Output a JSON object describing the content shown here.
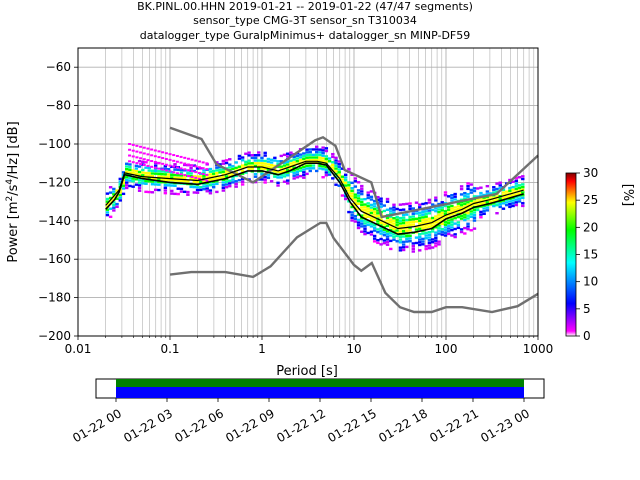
{
  "title_lines": [
    "BK.PINL.00.HHN   2019-01-21 -- 2019-01-22  (47/47 segments)",
    "sensor_type CMG-3T sensor_sn T310034",
    "datalogger_type GuralpMinimus+ datalogger_sn MINP-DF59"
  ],
  "chart_data": {
    "type": "heatmap",
    "xlabel": "Period [s]",
    "ylabel_parts": {
      "prefix": "Power [m",
      "sup1": "2",
      "mid": "/s",
      "sup2": "4",
      "suffix": "/Hz] [dB]"
    },
    "x_scale": "log",
    "xlim": [
      0.01,
      1000
    ],
    "ylim": [
      -200,
      -50
    ],
    "x_ticks": [
      {
        "value": 0.01,
        "label": "0.01"
      },
      {
        "value": 0.1,
        "label": "0.1"
      },
      {
        "value": 1,
        "label": "1"
      },
      {
        "value": 10,
        "label": "10"
      },
      {
        "value": 100,
        "label": "100"
      },
      {
        "value": 1000,
        "label": "1000"
      }
    ],
    "y_ticks": [
      {
        "value": -60,
        "label": "−60"
      },
      {
        "value": -80,
        "label": "−80"
      },
      {
        "value": -100,
        "label": "−100"
      },
      {
        "value": -120,
        "label": "−120"
      },
      {
        "value": -140,
        "label": "−140"
      },
      {
        "value": -160,
        "label": "−160"
      },
      {
        "value": -180,
        "label": "−180"
      },
      {
        "value": -200,
        "label": "−200"
      }
    ],
    "grid": true,
    "noise_model_high": [
      [
        0.1,
        -91.5
      ],
      [
        0.22,
        -97.4
      ],
      [
        0.32,
        -110.5
      ],
      [
        0.8,
        -120
      ],
      [
        3.8,
        -98
      ],
      [
        4.6,
        -96.5
      ],
      [
        6.3,
        -101
      ],
      [
        7.9,
        -113.5
      ],
      [
        15.4,
        -120
      ],
      [
        20,
        -138
      ],
      [
        354.8,
        -126
      ],
      [
        1000,
        -106
      ]
    ],
    "noise_model_low": [
      [
        0.1,
        -168
      ],
      [
        0.17,
        -166.7
      ],
      [
        0.4,
        -166.7
      ],
      [
        0.8,
        -169.2
      ],
      [
        1.24,
        -163.7
      ],
      [
        2.4,
        -148.6
      ],
      [
        4.3,
        -141.1
      ],
      [
        5,
        -141.1
      ],
      [
        6,
        -149
      ],
      [
        10,
        -163
      ],
      [
        12,
        -166
      ],
      [
        15.6,
        -162
      ],
      [
        21.9,
        -177.5
      ],
      [
        31.6,
        -185
      ],
      [
        45,
        -187.5
      ],
      [
        70,
        -187.5
      ],
      [
        100,
        -185
      ],
      [
        150,
        -185
      ],
      [
        316,
        -187.5
      ],
      [
        600,
        -184.5
      ],
      [
        1000,
        -178
      ]
    ],
    "mean_psd": [
      [
        0.02,
        -134
      ],
      [
        0.025,
        -129
      ],
      [
        0.028,
        -125
      ],
      [
        0.032,
        -116
      ],
      [
        0.05,
        -118
      ],
      [
        0.1,
        -120
      ],
      [
        0.2,
        -121
      ],
      [
        0.4,
        -118
      ],
      [
        0.7,
        -114
      ],
      [
        1,
        -114
      ],
      [
        1.5,
        -116
      ],
      [
        2,
        -114
      ],
      [
        3,
        -110
      ],
      [
        4,
        -110
      ],
      [
        5,
        -111
      ],
      [
        7,
        -120
      ],
      [
        9,
        -130
      ],
      [
        12,
        -138
      ],
      [
        20,
        -143
      ],
      [
        30,
        -147
      ],
      [
        45,
        -146
      ],
      [
        70,
        -144
      ],
      [
        100,
        -139
      ],
      [
        150,
        -136
      ],
      [
        200,
        -133
      ],
      [
        300,
        -131
      ],
      [
        500,
        -128
      ],
      [
        700,
        -126
      ]
    ],
    "mode_psd": [
      [
        0.02,
        -132
      ],
      [
        0.028,
        -124
      ],
      [
        0.032,
        -115
      ],
      [
        0.05,
        -117
      ],
      [
        0.1,
        -118
      ],
      [
        0.2,
        -119
      ],
      [
        0.4,
        -116
      ],
      [
        0.7,
        -112
      ],
      [
        1,
        -112
      ],
      [
        1.5,
        -114
      ],
      [
        2,
        -112
      ],
      [
        3,
        -109
      ],
      [
        4,
        -109
      ],
      [
        5,
        -110
      ],
      [
        7,
        -118
      ],
      [
        9,
        -128
      ],
      [
        12,
        -135
      ],
      [
        20,
        -140
      ],
      [
        30,
        -144
      ],
      [
        45,
        -143
      ],
      [
        70,
        -141
      ],
      [
        100,
        -137
      ],
      [
        150,
        -134
      ],
      [
        200,
        -131
      ],
      [
        300,
        -129
      ],
      [
        500,
        -126
      ],
      [
        700,
        -124
      ]
    ],
    "colorbar": {
      "label": "[%]",
      "range": [
        0,
        30
      ],
      "ticks": [
        {
          "value": 0,
          "label": "0"
        },
        {
          "value": 5,
          "label": "5"
        },
        {
          "value": 10,
          "label": "10"
        },
        {
          "value": 15,
          "label": "15"
        },
        {
          "value": 20,
          "label": "20"
        },
        {
          "value": 25,
          "label": "25"
        },
        {
          "value": 30,
          "label": "30"
        }
      ],
      "colors": [
        "#ffffff",
        "#ff00ff",
        "#0000ff",
        "#00ffff",
        "#00ff00",
        "#ffff00",
        "#ff0000",
        "#800000"
      ]
    },
    "coverage": {
      "bars": [
        {
          "name": "data-availability",
          "color": "#0000ff"
        },
        {
          "name": "psd-coverage",
          "color": "#008000"
        }
      ],
      "ticks": [
        "01-22 00",
        "01-22 03",
        "01-22 06",
        "01-22 09",
        "01-22 12",
        "01-22 15",
        "01-22 18",
        "01-22 21",
        "01-23 00"
      ]
    }
  }
}
